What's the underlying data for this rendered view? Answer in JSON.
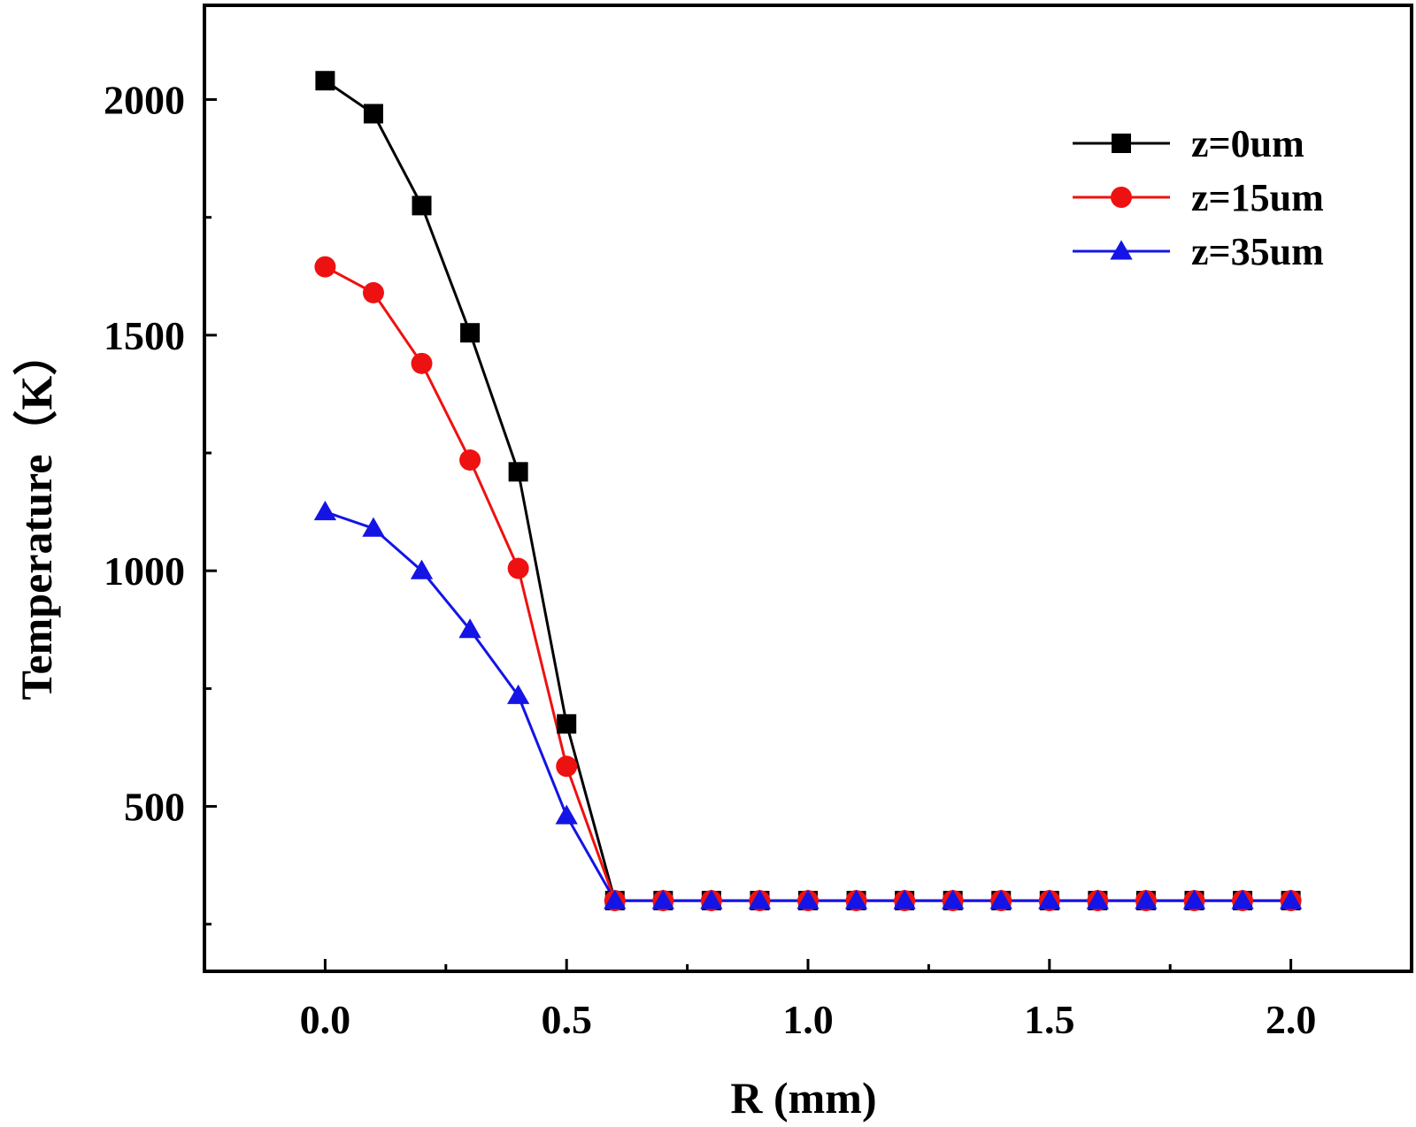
{
  "chart_data": {
    "type": "line",
    "title": "",
    "xlabel": "R (mm)",
    "ylabel": "Temperature（K）",
    "xlim": [
      -0.25,
      2.25
    ],
    "ylim": [
      150,
      2200
    ],
    "x_major_ticks": [
      0.0,
      0.5,
      1.0,
      1.5,
      2.0
    ],
    "x_tick_labels": [
      "0.0",
      "0.5",
      "1.0",
      "1.5",
      "2.0"
    ],
    "x_minor_ticks": [
      0.25,
      0.75,
      1.25,
      1.75
    ],
    "y_major_ticks": [
      500,
      1000,
      1500,
      2000
    ],
    "y_tick_labels": [
      "500",
      "1000",
      "1500",
      "2000"
    ],
    "y_minor_ticks": [
      250,
      750,
      1250,
      1750
    ],
    "grid": false,
    "legend_position": "top-right",
    "x": [
      0.0,
      0.1,
      0.2,
      0.3,
      0.4,
      0.5,
      0.6,
      0.7,
      0.8,
      0.9,
      1.0,
      1.1,
      1.2,
      1.3,
      1.4,
      1.5,
      1.6,
      1.7,
      1.8,
      1.9,
      2.0
    ],
    "series": [
      {
        "name": "z=0um",
        "color": "#000000",
        "marker": "square",
        "values": [
          2040,
          1970,
          1775,
          1505,
          1210,
          675,
          300,
          300,
          300,
          300,
          300,
          300,
          300,
          300,
          300,
          300,
          300,
          300,
          300,
          300,
          300
        ]
      },
      {
        "name": "z=15um",
        "color": "#ee1111",
        "marker": "circle",
        "values": [
          1645,
          1590,
          1440,
          1235,
          1005,
          585,
          300,
          300,
          300,
          300,
          300,
          300,
          300,
          300,
          300,
          300,
          300,
          300,
          300,
          300,
          300
        ]
      },
      {
        "name": "z=35um",
        "color": "#1414e6",
        "marker": "triangle",
        "values": [
          1125,
          1090,
          1000,
          875,
          735,
          480,
          300,
          300,
          300,
          300,
          300,
          300,
          300,
          300,
          300,
          300,
          300,
          300,
          300,
          300,
          300
        ]
      }
    ]
  }
}
